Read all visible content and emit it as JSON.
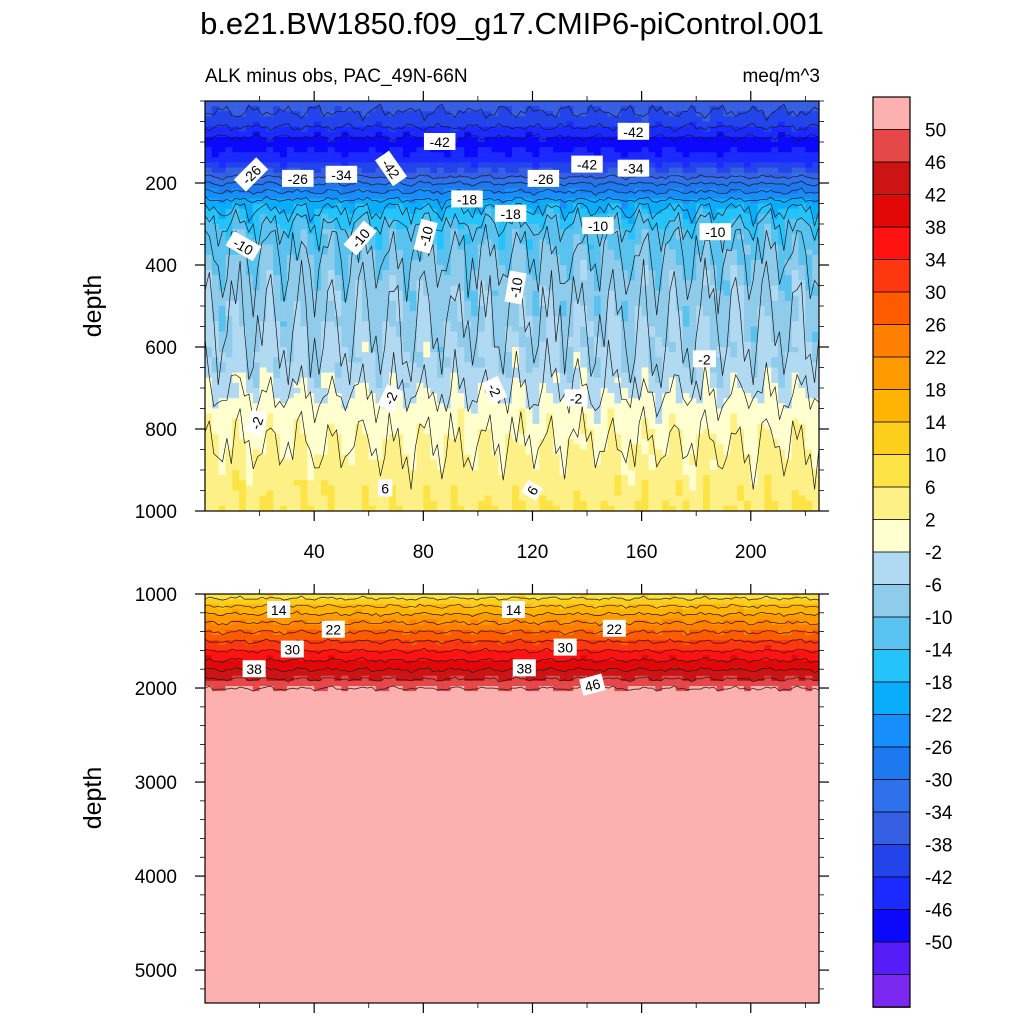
{
  "title": "b.e21.BW1850.f09_g17.CMIP6-piControl.001",
  "subtitle_left": "ALK minus obs, PAC_49N-66N",
  "subtitle_right": "meq/m^3",
  "chart_data": [
    {
      "type": "heatmap",
      "panel": "upper",
      "ylabel": "depth",
      "xlabel": "",
      "xlim": [
        0,
        225
      ],
      "ylim": [
        1000,
        0
      ],
      "y_reversed": true,
      "x_ticks": [
        "40",
        "80",
        "120",
        "160",
        "200"
      ],
      "y_ticks": [
        "200",
        "400",
        "600",
        "800",
        "1000"
      ],
      "depth_profile": [
        {
          "depth": 0,
          "value": -36
        },
        {
          "depth": 50,
          "value": -40
        },
        {
          "depth": 100,
          "value": -48
        },
        {
          "depth": 145,
          "value": -44
        },
        {
          "depth": 200,
          "value": -30
        },
        {
          "depth": 260,
          "value": -18
        },
        {
          "depth": 320,
          "value": -12
        },
        {
          "depth": 450,
          "value": -8
        },
        {
          "depth": 650,
          "value": -5
        },
        {
          "depth": 760,
          "value": 0
        },
        {
          "depth": 880,
          "value": 3
        },
        {
          "depth": 1000,
          "value": 6
        }
      ],
      "contour_labels": [
        {
          "x": 17,
          "depth": 180,
          "text": "-26",
          "angle": -45
        },
        {
          "x": 34,
          "depth": 190,
          "text": "-26",
          "angle": 0
        },
        {
          "x": 50,
          "depth": 180,
          "text": "-34",
          "angle": 0
        },
        {
          "x": 68,
          "depth": 165,
          "text": "-42",
          "angle": 55
        },
        {
          "x": 86,
          "depth": 100,
          "text": "-42",
          "angle": 0
        },
        {
          "x": 96,
          "depth": 240,
          "text": "-18",
          "angle": 0
        },
        {
          "x": 112,
          "depth": 275,
          "text": "-18",
          "angle": 0
        },
        {
          "x": 124,
          "depth": 190,
          "text": "-26",
          "angle": 0
        },
        {
          "x": 140,
          "depth": 155,
          "text": "-42",
          "angle": 0
        },
        {
          "x": 157,
          "depth": 75,
          "text": "-42",
          "angle": 0
        },
        {
          "x": 157,
          "depth": 165,
          "text": "-34",
          "angle": 0
        },
        {
          "x": 144,
          "depth": 305,
          "text": "-10",
          "angle": 0
        },
        {
          "x": 187,
          "depth": 320,
          "text": "-10",
          "angle": 0
        },
        {
          "x": 14,
          "depth": 355,
          "text": "-10",
          "angle": 30
        },
        {
          "x": 57,
          "depth": 335,
          "text": "-10",
          "angle": -50
        },
        {
          "x": 81,
          "depth": 330,
          "text": "-10",
          "angle": -75
        },
        {
          "x": 114,
          "depth": 455,
          "text": "-10",
          "angle": -80
        },
        {
          "x": 183,
          "depth": 630,
          "text": "-2",
          "angle": 0
        },
        {
          "x": 106,
          "depth": 705,
          "text": "-2",
          "angle": 65
        },
        {
          "x": 68,
          "depth": 725,
          "text": "-2",
          "angle": -65
        },
        {
          "x": 136,
          "depth": 725,
          "text": "-2",
          "angle": 0
        },
        {
          "x": 19,
          "depth": 785,
          "text": "-2",
          "angle": -70
        },
        {
          "x": 66,
          "depth": 945,
          "text": "6",
          "angle": 0
        },
        {
          "x": 120,
          "depth": 950,
          "text": "6",
          "angle": -60
        }
      ]
    },
    {
      "type": "heatmap",
      "panel": "lower",
      "ylabel": "depth",
      "xlim": [
        0,
        225
      ],
      "ylim": [
        5350,
        1000
      ],
      "y_reversed": true,
      "y_ticks": [
        "1000",
        "2000",
        "3000",
        "4000",
        "5000"
      ],
      "depth_profile": [
        {
          "depth": 1000,
          "value": 8
        },
        {
          "depth": 1250,
          "value": 20
        },
        {
          "depth": 1500,
          "value": 30
        },
        {
          "depth": 1750,
          "value": 40
        },
        {
          "depth": 1950,
          "value": 48
        },
        {
          "depth": 2050,
          "value": 52
        },
        {
          "depth": 5350,
          "value": 52
        }
      ],
      "contour_labels": [
        {
          "x": 27,
          "depth": 1170,
          "text": "14",
          "angle": 0
        },
        {
          "x": 113,
          "depth": 1170,
          "text": "14",
          "angle": 0
        },
        {
          "x": 47,
          "depth": 1380,
          "text": "22",
          "angle": 0
        },
        {
          "x": 150,
          "depth": 1370,
          "text": "22",
          "angle": 0
        },
        {
          "x": 32,
          "depth": 1590,
          "text": "30",
          "angle": 0
        },
        {
          "x": 132,
          "depth": 1570,
          "text": "30",
          "angle": 0
        },
        {
          "x": 18,
          "depth": 1800,
          "text": "38",
          "angle": 0
        },
        {
          "x": 117,
          "depth": 1790,
          "text": "38",
          "angle": 0
        },
        {
          "x": 142,
          "depth": 1970,
          "text": "46",
          "angle": -15
        }
      ]
    }
  ],
  "colorbar": {
    "levels": [
      "50",
      "46",
      "42",
      "38",
      "34",
      "30",
      "26",
      "22",
      "18",
      "14",
      "10",
      "6",
      "2",
      "-2",
      "-6",
      "-10",
      "-14",
      "-18",
      "-22",
      "-26",
      "-30",
      "-34",
      "-38",
      "-42",
      "-46",
      "-50"
    ],
    "colors": [
      "#fdb0b0",
      "#e6484a",
      "#cd1414",
      "#e20808",
      "#fe1212",
      "#ff3710",
      "#fe5b00",
      "#ff7f00",
      "#ff9b00",
      "#ffb302",
      "#fdcf1c",
      "#fde345",
      "#fdf086",
      "#ffffd0",
      "#b1daf2",
      "#8fcbeb",
      "#59c2ef",
      "#24c3fb",
      "#0aacfc",
      "#168efb",
      "#1e78f0",
      "#2f71eb",
      "#365fe4",
      "#2344eb",
      "#1b2bff",
      "#0c08fc",
      "#561df9",
      "#7b28f0"
    ]
  }
}
